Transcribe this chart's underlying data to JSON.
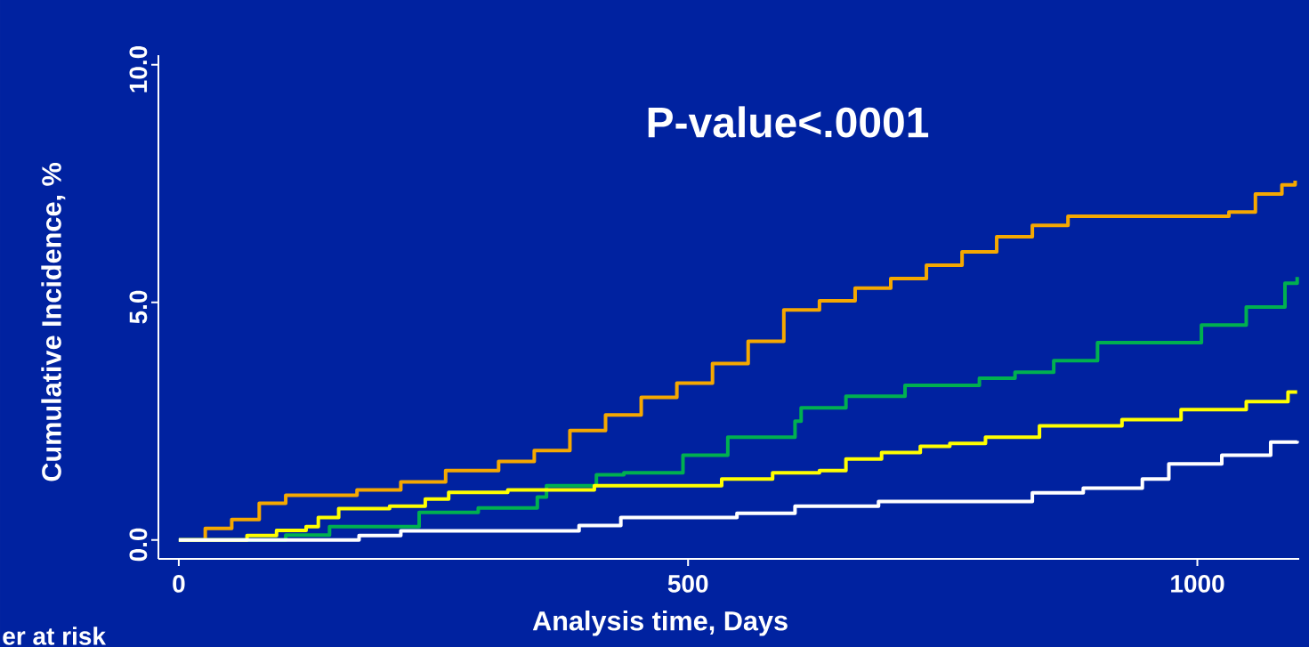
{
  "chart_data": {
    "type": "step",
    "xlabel": "Analysis time, Days",
    "ylabel": "Cumulative Incidence, %",
    "annotations": [
      "P-value<.0001",
      "er at risk"
    ],
    "xlim": [
      -20,
      1100
    ],
    "ylim": [
      -0.4,
      10.2
    ],
    "xticks": [
      0,
      500,
      1000
    ],
    "yticks": [
      {
        "value": 0,
        "label": "0.0"
      },
      {
        "value": 5,
        "label": "5.0"
      },
      {
        "value": 10,
        "label": "10.0"
      }
    ],
    "series": [
      {
        "color": "#f5a800",
        "x": [
          0,
          26,
          52,
          79,
          105,
          175,
          218,
          262,
          314,
          349,
          384,
          419,
          454,
          489,
          524,
          559,
          594,
          629,
          664,
          699,
          734,
          769,
          803,
          838,
          873,
          943,
          1031,
          1057,
          1083,
          1096
        ],
        "values": [
          0,
          0.24,
          0.43,
          0.77,
          0.94,
          1.05,
          1.22,
          1.46,
          1.65,
          1.88,
          2.3,
          2.63,
          3.0,
          3.3,
          3.71,
          4.18,
          4.84,
          5.03,
          5.3,
          5.5,
          5.78,
          6.06,
          6.38,
          6.62,
          6.81,
          6.81,
          6.9,
          7.28,
          7.47,
          7.56
        ]
      },
      {
        "color": "#00b050",
        "x": [
          0,
          105,
          148,
          236,
          294,
          352,
          361,
          410,
          437,
          495,
          539,
          605,
          611,
          655,
          713,
          786,
          821,
          859,
          902,
          984,
          1004,
          1048,
          1086,
          1098
        ],
        "values": [
          0,
          0.1,
          0.28,
          0.58,
          0.67,
          0.9,
          1.14,
          1.37,
          1.41,
          1.78,
          2.16,
          2.5,
          2.78,
          3.02,
          3.25,
          3.4,
          3.53,
          3.77,
          4.15,
          4.15,
          4.52,
          4.9,
          5.4,
          5.53
        ]
      },
      {
        "color": "#ffff00",
        "x": [
          0,
          67,
          96,
          125,
          137,
          157,
          207,
          242,
          265,
          323,
          408,
          533,
          583,
          629,
          655,
          690,
          728,
          757,
          792,
          845,
          926,
          984,
          1048,
          1089,
          1098
        ],
        "values": [
          0,
          0.09,
          0.2,
          0.28,
          0.47,
          0.66,
          0.71,
          0.86,
          1.0,
          1.05,
          1.14,
          1.28,
          1.41,
          1.46,
          1.7,
          1.84,
          1.97,
          2.03,
          2.16,
          2.4,
          2.53,
          2.74,
          2.91,
          3.11,
          3.11
        ]
      },
      {
        "color": "#ffffff",
        "x": [
          0,
          137,
          177,
          218,
          393,
          434,
          548,
          605,
          687,
          838,
          888,
          946,
          972,
          1024,
          1072,
          1098
        ],
        "values": [
          0,
          0,
          0.09,
          0.19,
          0.3,
          0.47,
          0.56,
          0.71,
          0.81,
          0.99,
          1.09,
          1.28,
          1.6,
          1.78,
          2.06,
          2.08
        ]
      }
    ]
  }
}
